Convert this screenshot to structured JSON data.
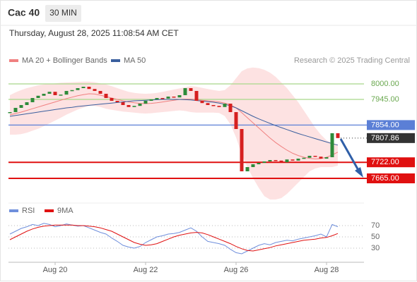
{
  "chart_data": {
    "type": "candlestick",
    "title": "Cac 40",
    "interval": "30 MIN",
    "subtitle": "Thursday, August 28, 2025 11:08:54 AM CET",
    "credit": "Research © 2025 Trading Central",
    "categories": [
      null,
      null,
      null,
      null,
      null,
      null,
      null,
      null,
      "Aug 20",
      null,
      null,
      null,
      null,
      null,
      null,
      null,
      null,
      null,
      null,
      null,
      null,
      null,
      null,
      null,
      "Aug 22",
      null,
      null,
      null,
      null,
      null,
      null,
      null,
      null,
      null,
      null,
      null,
      null,
      null,
      null,
      null,
      "Aug 26",
      null,
      null,
      null,
      null,
      null,
      null,
      null,
      null,
      null,
      null,
      null,
      null,
      null,
      null,
      null,
      "Aug 28",
      null,
      null
    ],
    "ylim": [
      7585,
      8072.5
    ],
    "values": [
      7900,
      7915,
      7925,
      7935,
      7950,
      7958,
      7965,
      7972,
      7960,
      7962,
      7975,
      7978,
      7985,
      7990,
      7982,
      7975,
      7965,
      7950,
      7940,
      7935,
      7925,
      7918,
      7922,
      7930,
      7940,
      7945,
      7950,
      7948,
      7955,
      7952,
      7960,
      7985,
      7975,
      7940,
      7932,
      7925,
      7922,
      7918,
      7930,
      7900,
      7840,
      7690,
      7705,
      7715,
      7720,
      7725,
      7730,
      7728,
      7722,
      7732,
      7728,
      7735,
      7738,
      7745,
      7742,
      7735,
      7740,
      7825,
      7807.86
    ],
    "up_color": "#2e8b3a",
    "down_color": "#d62020",
    "last_price": 7807.86,
    "series": [
      {
        "name": "MA 20 + Bollinger Bands",
        "color": "#f08080",
        "band_color": "#fde2e2",
        "values": [
          7890,
          7895,
          7900,
          7906,
          7912,
          7918,
          7924,
          7930,
          7936,
          7942,
          7948,
          7953,
          7958,
          7962,
          7965,
          7964,
          7960,
          7955,
          7950,
          7945,
          7940,
          7936,
          7933,
          7931,
          7930,
          7931,
          7933,
          7936,
          7939,
          7942,
          7945,
          7946,
          7946,
          7944,
          7942,
          7940,
          7938,
          7936,
          7932,
          7926,
          7915,
          7898,
          7880,
          7862,
          7844,
          7826,
          7808,
          7792,
          7778,
          7765,
          7754,
          7746,
          7740,
          7736,
          7734,
          7735,
          7740,
          7748,
          7758
        ],
        "upper": [
          7960,
          7970,
          7978,
          7985,
          7990,
          7995,
          7998,
          8000,
          8002,
          8004,
          8005,
          8006,
          8007,
          8008,
          8008,
          8006,
          8002,
          7998,
          7992,
          7985,
          7978,
          7972,
          7968,
          7966,
          7965,
          7966,
          7968,
          7972,
          7976,
          7980,
          7984,
          7988,
          7992,
          7990,
          7986,
          7982,
          7978,
          7975,
          7978,
          7995,
          8020,
          8045,
          8055,
          8058,
          8056,
          8050,
          8040,
          8025,
          8005,
          7985,
          7960,
          7935,
          7905,
          7875,
          7845,
          7820,
          7800,
          7790,
          7785
        ],
        "lower": [
          7820,
          7820,
          7822,
          7827,
          7834,
          7841,
          7850,
          7860,
          7870,
          7880,
          7891,
          7900,
          7909,
          7916,
          7922,
          7922,
          7918,
          7912,
          7908,
          7905,
          7902,
          7900,
          7898,
          7896,
          7895,
          7896,
          7898,
          7900,
          7902,
          7904,
          7906,
          7904,
          7900,
          7898,
          7898,
          7898,
          7898,
          7897,
          7886,
          7857,
          7810,
          7751,
          7705,
          7666,
          7632,
          7602,
          7590,
          7590,
          7595,
          7610,
          7630,
          7650,
          7670,
          7690,
          7700,
          7705,
          7705,
          7705,
          7710
        ]
      },
      {
        "name": "MA 50",
        "color": "#3a5f9e",
        "values": [
          7885,
          7888,
          7891,
          7894,
          7897,
          7900,
          7903,
          7906,
          7909,
          7912,
          7915,
          7917,
          7920,
          7922,
          7924,
          7926,
          7928,
          7930,
          7932,
          7934,
          7936,
          7938,
          7940,
          7941,
          7942,
          7943,
          7944,
          7945,
          7945,
          7945,
          7945,
          7944,
          7943,
          7941,
          7939,
          7937,
          7935,
          7932,
          7928,
          7922,
          7915,
          7905,
          7895,
          7885,
          7876,
          7868,
          7860,
          7852,
          7845,
          7838,
          7831,
          7824,
          7818,
          7812,
          7806,
          7800,
          7794,
          7788,
          7783
        ]
      }
    ],
    "levels": [
      {
        "value": 8000,
        "label": "8000.00",
        "color": "#a8d88a",
        "style": "text"
      },
      {
        "value": 7945,
        "label": "7945.00",
        "color": "#a8d88a",
        "style": "text"
      },
      {
        "value": 7854,
        "label": "7854.00",
        "color": "#5b7fd6",
        "style": "box"
      },
      {
        "value": 7722,
        "label": "7722.00",
        "color": "#e01010",
        "style": "box"
      },
      {
        "value": 7665,
        "label": "7665.00",
        "color": "#e01010",
        "style": "box"
      }
    ],
    "rsi": {
      "ylim": [
        5,
        100
      ],
      "yticks": [
        30,
        50,
        70
      ],
      "series": [
        {
          "name": "RSI",
          "color": "#6f8fdc",
          "values": [
            55,
            60,
            65,
            68,
            72,
            70,
            74,
            72,
            68,
            70,
            73,
            71,
            69,
            70,
            66,
            62,
            58,
            55,
            48,
            42,
            35,
            32,
            30,
            33,
            40,
            45,
            50,
            52,
            55,
            56,
            58,
            62,
            66,
            60,
            50,
            42,
            40,
            38,
            35,
            28,
            22,
            20,
            25,
            30,
            35,
            38,
            36,
            40,
            42,
            44,
            43,
            46,
            48,
            50,
            52,
            55,
            50,
            72,
            68
          ]
        },
        {
          "name": "9MA",
          "color": "#e01010",
          "values": [
            45,
            50,
            55,
            60,
            64,
            67,
            69,
            70,
            71,
            71,
            71,
            71,
            70,
            70,
            69,
            68,
            66,
            63,
            60,
            55,
            50,
            45,
            40,
            37,
            35,
            36,
            38,
            42,
            46,
            50,
            53,
            55,
            57,
            58,
            57,
            54,
            50,
            46,
            42,
            38,
            33,
            29,
            26,
            25,
            27,
            29,
            31,
            34,
            36,
            38,
            40,
            42,
            44,
            45,
            46,
            48,
            49,
            52,
            56
          ]
        }
      ]
    }
  }
}
